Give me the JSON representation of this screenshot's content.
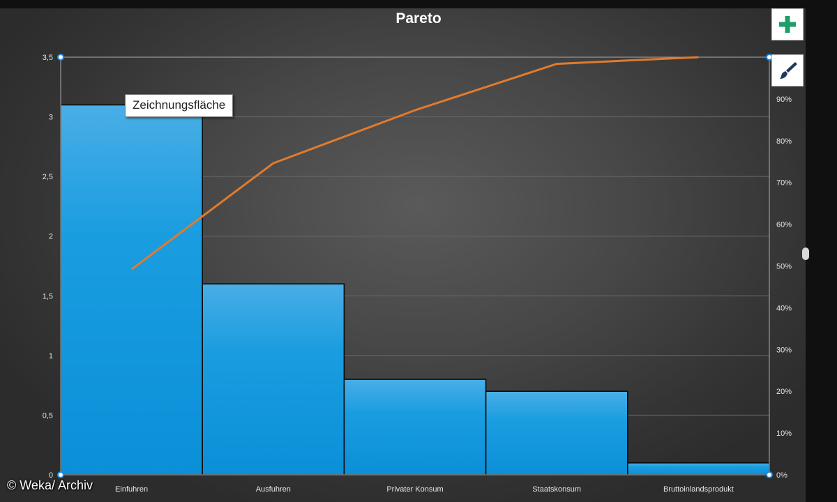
{
  "chart_data": {
    "type": "bar",
    "title": "Pareto",
    "categories": [
      "Einfuhren",
      "Ausfuhren",
      "Privater Konsum",
      "Staatskonsum",
      "Bruttoinlandsprodukt"
    ],
    "series": [
      {
        "type": "bar",
        "values": [
          3.1,
          1.6,
          0.8,
          0.7,
          0.1
        ]
      },
      {
        "type": "line",
        "axis": "right",
        "values": [
          49.2,
          74.6,
          87.3,
          98.4,
          100
        ]
      }
    ],
    "ylim": [
      0,
      3.5
    ],
    "yticks": [
      "0",
      "0,5",
      "1",
      "1,5",
      "2",
      "2,5",
      "3",
      "3,5"
    ],
    "y2lim": [
      0,
      100
    ],
    "y2ticks": [
      "0%",
      "10%",
      "20%",
      "30%",
      "40%",
      "50%",
      "60%",
      "70%",
      "80%",
      "90%"
    ],
    "grid": true,
    "xlabel": "",
    "ylabel": "",
    "colors": {
      "bar": "#1a9de0",
      "line": "#e07b2e"
    }
  },
  "tooltip": {
    "text": "Zeichnungsfläche"
  },
  "buttons": {
    "add": {
      "icon": "plus-icon",
      "color": "#1e9e6a"
    },
    "style": {
      "icon": "paintbrush-icon",
      "color": "#1f3a5a"
    }
  },
  "watermark": "© Weka/ Archiv"
}
